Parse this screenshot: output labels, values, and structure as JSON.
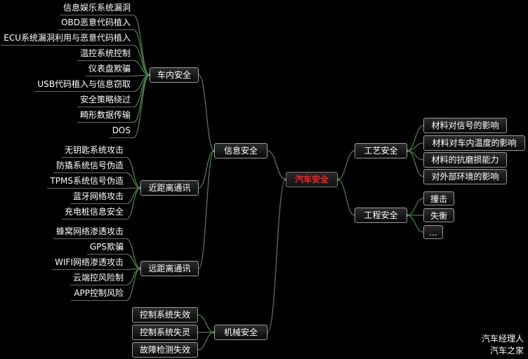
{
  "root": {
    "label": "汽车安全"
  },
  "left": [
    {
      "label": "信息安全",
      "children": [
        {
          "label": "车内安全",
          "leaves": [
            "信息娱乐系统漏洞",
            "OBD恶意代码植入",
            "ECU系统漏洞利用与恶意代码植入",
            "温控系统控制",
            "仪表盘欺骗",
            "USB代码植入与信息窃取",
            "安全策略绕过",
            "畸形数据传输",
            "DOS"
          ]
        },
        {
          "label": "近距离通讯",
          "leaves": [
            "无钥匙系统攻击",
            "防撬系统信号伪造",
            "TPMS系统信号伪造",
            "蓝牙网络攻击",
            "充电桩信息安全"
          ]
        },
        {
          "label": "远距离通讯",
          "leaves": [
            "蜂窝网络渗透攻击",
            "GPS欺骗",
            "WIFI网络渗透攻击",
            "云端控风险制",
            "APP控制风险"
          ]
        }
      ]
    },
    {
      "label": "机械安全",
      "leaves": [
        "控制系统失效",
        "控制系统失灵",
        "故障检测失效"
      ]
    }
  ],
  "right": [
    {
      "label": "工艺安全",
      "leaves": [
        "材料对信号的影响",
        "材料对车内温度的影响",
        "材料的抗磨损能力",
        "对外部环境的影响"
      ]
    },
    {
      "label": "工程安全",
      "leaves": [
        "撞击",
        "失衡",
        "..."
      ]
    }
  ],
  "watermark": [
    "汽车经理人",
    "汽车之家"
  ]
}
